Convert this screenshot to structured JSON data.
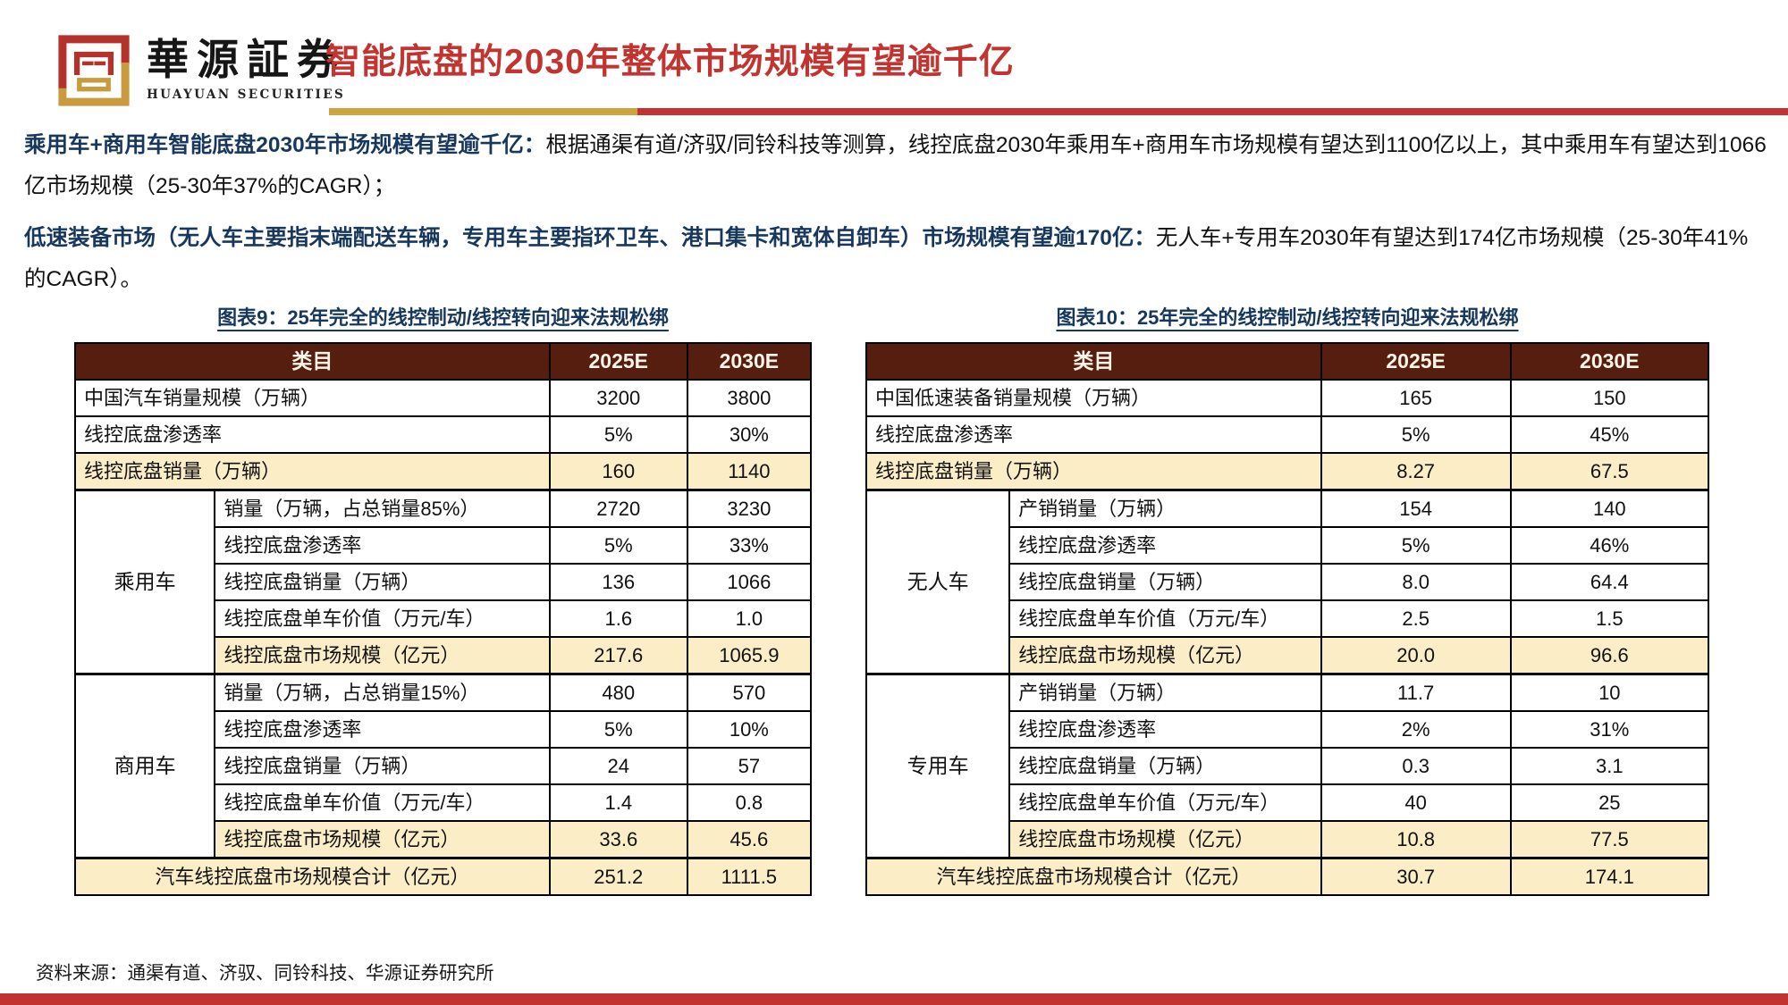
{
  "colors": {
    "accent_red": "#C2342F",
    "accent_gold": "#D0A43C",
    "heading_navy": "#17375D",
    "table_header_bg": "#561E0E",
    "table_header_text": "#FAF3E7",
    "highlight_row_bg": "#FBEEC6"
  },
  "header": {
    "logo_cn": "華源証券",
    "logo_en": "HUAYUAN SECURITIES",
    "title": "智能底盘的2030年整体市场规模有望逾千亿"
  },
  "paragraphs": [
    {
      "lead": "乘用车+商用车智能底盘2030年市场规模有望逾千亿：",
      "body": "根据通渠有道/济驭/同铃科技等测算，线控底盘2030年乘用车+商用车市场规模有望达到1100亿以上，其中乘用车有望达到1066亿市场规模（25-30年37%的CAGR）；"
    },
    {
      "lead": "低速装备市场（无人车主要指末端配送车辆，专用车主要指环卫车、港口集卡和宽体自卸车）市场规模有望逾170亿：",
      "body": "无人车+专用车2030年有望达到174亿市场规模（25-30年41%的CAGR）。"
    }
  ],
  "tables": [
    {
      "caption": "图表9：25年完全的线控制动/线控转向迎来法规松绑",
      "headers": [
        "类目",
        "2025E",
        "2030E"
      ],
      "col_widths_pct": [
        19,
        45.5,
        18.7,
        16.8
      ],
      "rows": [
        {
          "kind": "plain",
          "label": "中国汽车销量规模（万辆）",
          "v1": "3200",
          "v2": "3800"
        },
        {
          "kind": "plain",
          "label": "线控底盘渗透率",
          "v1": "5%",
          "v2": "30%"
        },
        {
          "kind": "highlight",
          "label": "线控底盘销量（万辆）",
          "v1": "160",
          "v2": "1140"
        },
        {
          "kind": "group-start",
          "group": "乘用车",
          "span": 5,
          "label": "销量（万辆，占总销量85%）",
          "v1": "2720",
          "v2": "3230"
        },
        {
          "kind": "sub",
          "label": "线控底盘渗透率",
          "v1": "5%",
          "v2": "33%"
        },
        {
          "kind": "sub",
          "label": "线控底盘销量（万辆）",
          "v1": "136",
          "v2": "1066"
        },
        {
          "kind": "sub",
          "label": "线控底盘单车价值（万元/车）",
          "v1": "1.6",
          "v2": "1.0"
        },
        {
          "kind": "sub-highlight",
          "label": "线控底盘市场规模（亿元）",
          "v1": "217.6",
          "v2": "1065.9"
        },
        {
          "kind": "group-start",
          "group": "商用车",
          "span": 5,
          "label": "销量（万辆，占总销量15%）",
          "v1": "480",
          "v2": "570"
        },
        {
          "kind": "sub",
          "label": "线控底盘渗透率",
          "v1": "5%",
          "v2": "10%"
        },
        {
          "kind": "sub",
          "label": "线控底盘销量（万辆）",
          "v1": "24",
          "v2": "57"
        },
        {
          "kind": "sub",
          "label": "线控底盘单车价值（万元/车）",
          "v1": "1.4",
          "v2": "0.8"
        },
        {
          "kind": "sub-highlight",
          "label": "线控底盘市场规模（亿元）",
          "v1": "33.6",
          "v2": "45.6"
        },
        {
          "kind": "total",
          "label": "汽车线控底盘市场规模合计（亿元）",
          "v1": "251.2",
          "v2": "1111.5"
        }
      ]
    },
    {
      "caption": "图表10：25年完全的线控制动/线控转向迎来法规松绑",
      "headers": [
        "类目",
        "2025E",
        "2030E"
      ],
      "col_widths_pct": [
        17,
        37,
        22.5,
        23.5
      ],
      "rows": [
        {
          "kind": "plain",
          "label": "中国低速装备销量规模（万辆）",
          "v1": "165",
          "v2": "150"
        },
        {
          "kind": "plain",
          "label": "线控底盘渗透率",
          "v1": "5%",
          "v2": "45%"
        },
        {
          "kind": "highlight",
          "label": "线控底盘销量（万辆）",
          "v1": "8.27",
          "v2": "67.5"
        },
        {
          "kind": "group-start",
          "group": "无人车",
          "span": 5,
          "label": "产销销量（万辆）",
          "v1": "154",
          "v2": "140"
        },
        {
          "kind": "sub",
          "label": "线控底盘渗透率",
          "v1": "5%",
          "v2": "46%"
        },
        {
          "kind": "sub",
          "label": "线控底盘销量（万辆）",
          "v1": "8.0",
          "v2": "64.4"
        },
        {
          "kind": "sub",
          "label": "线控底盘单车价值（万元/车）",
          "v1": "2.5",
          "v2": "1.5"
        },
        {
          "kind": "sub-highlight",
          "label": "线控底盘市场规模（亿元）",
          "v1": "20.0",
          "v2": "96.6"
        },
        {
          "kind": "group-start",
          "group": "专用车",
          "span": 5,
          "label": "产销销量（万辆）",
          "v1": "11.7",
          "v2": "10"
        },
        {
          "kind": "sub",
          "label": "线控底盘渗透率",
          "v1": "2%",
          "v2": "31%"
        },
        {
          "kind": "sub",
          "label": "线控底盘销量（万辆）",
          "v1": "0.3",
          "v2": "3.1"
        },
        {
          "kind": "sub",
          "label": "线控底盘单车价值（万元/车）",
          "v1": "40",
          "v2": "25"
        },
        {
          "kind": "sub-highlight",
          "label": "线控底盘市场规模（亿元）",
          "v1": "10.8",
          "v2": "77.5"
        },
        {
          "kind": "total",
          "label": "汽车线控底盘市场规模合计（亿元）",
          "v1": "30.7",
          "v2": "174.1"
        }
      ]
    }
  ],
  "footer": {
    "source": "资料来源：通渠有道、济驭、同铃科技、华源证券研究所"
  }
}
